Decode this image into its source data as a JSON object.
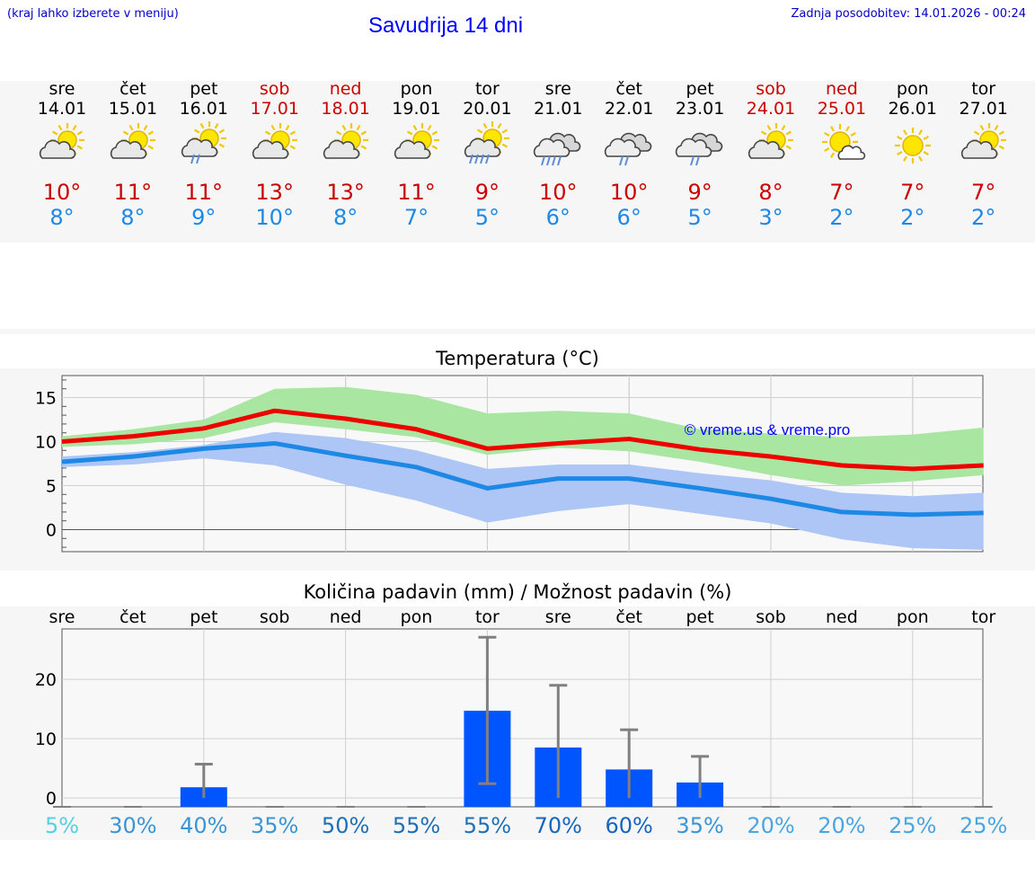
{
  "header": {
    "hint": "(kraj lahko izberete v meniju)",
    "title": "Savudrija 14 dni",
    "updated": "Zadnja posodobitev: 14.01.2026 - 00:24"
  },
  "colors": {
    "weekend": "#cc0000",
    "max_line": "#ee0000",
    "min_line": "#1e88e5",
    "max_band": "#a8e6a1",
    "min_band": "#aec6f5",
    "overlap": "#86c8a6",
    "bar": "#0055ff",
    "title": "#0000ff"
  },
  "days": [
    {
      "name": "sre",
      "date": "14.01",
      "weekend": false,
      "icon": "partly-cloudy-icon",
      "max": "10°",
      "min": "8°"
    },
    {
      "name": "čet",
      "date": "15.01",
      "weekend": false,
      "icon": "partly-cloudy-icon",
      "max": "11°",
      "min": "8°"
    },
    {
      "name": "pet",
      "date": "16.01",
      "weekend": false,
      "icon": "sun-cloud-rain-icon",
      "max": "11°",
      "min": "9°"
    },
    {
      "name": "sob",
      "date": "17.01",
      "weekend": true,
      "icon": "partly-cloudy-icon",
      "max": "13°",
      "min": "10°"
    },
    {
      "name": "ned",
      "date": "18.01",
      "weekend": true,
      "icon": "partly-cloudy-icon",
      "max": "13°",
      "min": "8°"
    },
    {
      "name": "pon",
      "date": "19.01",
      "weekend": false,
      "icon": "partly-cloudy-icon",
      "max": "11°",
      "min": "7°"
    },
    {
      "name": "tor",
      "date": "20.01",
      "weekend": false,
      "icon": "sun-cloud-heavy-rain-icon",
      "max": "9°",
      "min": "5°"
    },
    {
      "name": "sre",
      "date": "21.01",
      "weekend": false,
      "icon": "cloud-heavy-rain-icon",
      "max": "10°",
      "min": "6°"
    },
    {
      "name": "čet",
      "date": "22.01",
      "weekend": false,
      "icon": "cloud-rain-icon",
      "max": "10°",
      "min": "6°"
    },
    {
      "name": "pet",
      "date": "23.01",
      "weekend": false,
      "icon": "cloud-rain-icon",
      "max": "9°",
      "min": "5°"
    },
    {
      "name": "sob",
      "date": "24.01",
      "weekend": true,
      "icon": "partly-cloudy-icon",
      "max": "8°",
      "min": "3°"
    },
    {
      "name": "ned",
      "date": "25.01",
      "weekend": true,
      "icon": "sun-small-cloud-icon",
      "max": "7°",
      "min": "2°"
    },
    {
      "name": "pon",
      "date": "26.01",
      "weekend": false,
      "icon": "sun-icon",
      "max": "7°",
      "min": "2°"
    },
    {
      "name": "tor",
      "date": "27.01",
      "weekend": false,
      "icon": "partly-cloudy-icon",
      "max": "7°",
      "min": "2°"
    }
  ],
  "chart_data": [
    {
      "type": "line",
      "title": "Temperatura (°C)",
      "watermark": "© vreme.us & vreme.pro",
      "ylim": [
        -2.5,
        17.5
      ],
      "yticks": [
        0,
        5,
        10,
        15
      ],
      "x": [
        0,
        1,
        2,
        3,
        4,
        5,
        6,
        7,
        8,
        9,
        10,
        11,
        12,
        13
      ],
      "series": [
        {
          "name": "max",
          "values": [
            10.0,
            10.6,
            11.5,
            13.5,
            12.6,
            11.4,
            9.2,
            9.8,
            10.3,
            9.1,
            8.3,
            7.3,
            6.9,
            7.3
          ]
        },
        {
          "name": "min",
          "values": [
            7.7,
            8.3,
            9.2,
            9.8,
            8.4,
            7.1,
            4.7,
            5.8,
            5.8,
            4.7,
            3.5,
            2.0,
            1.7,
            1.9
          ]
        },
        {
          "name": "max_range_high",
          "values": [
            10.6,
            11.4,
            12.5,
            16.0,
            16.2,
            15.3,
            13.2,
            13.5,
            13.2,
            11.4,
            10.9,
            10.5,
            10.8,
            11.6
          ]
        },
        {
          "name": "max_range_low",
          "values": [
            9.4,
            9.7,
            10.4,
            12.2,
            11.4,
            10.5,
            8.5,
            9.3,
            8.9,
            7.7,
            6.2,
            5.0,
            5.5,
            6.2
          ]
        },
        {
          "name": "min_range_high",
          "values": [
            8.3,
            8.8,
            9.6,
            11.1,
            10.4,
            9.0,
            6.9,
            7.4,
            7.4,
            6.4,
            5.6,
            4.2,
            3.8,
            4.2
          ]
        },
        {
          "name": "min_range_low",
          "values": [
            7.1,
            7.4,
            8.1,
            7.3,
            5.1,
            3.3,
            0.8,
            2.1,
            2.9,
            1.8,
            0.7,
            -1.1,
            -2.1,
            -2.3
          ]
        }
      ]
    },
    {
      "type": "bar",
      "title": "Količina padavin (mm) / Možnost padavin (%)",
      "ylim": [
        -1.5,
        28.5
      ],
      "yticks": [
        0,
        10,
        20
      ],
      "categories": [
        "sre",
        "čet",
        "pet",
        "sob",
        "ned",
        "pon",
        "tor",
        "sre",
        "čet",
        "pet",
        "sob",
        "ned",
        "pon",
        "tor"
      ],
      "values": [
        0,
        0,
        1.8,
        0,
        0,
        0,
        14.7,
        8.5,
        4.8,
        2.6,
        0,
        0,
        0,
        0
      ],
      "error_low": [
        0,
        0,
        0,
        0,
        0,
        0,
        2.4,
        0,
        0,
        0,
        0,
        0,
        0,
        0
      ],
      "error_high": [
        0,
        0,
        5.7,
        0,
        0,
        0,
        27.1,
        19.0,
        11.5,
        7.0,
        0,
        0,
        0,
        0
      ],
      "probability": [
        "5%",
        "30%",
        "40%",
        "35%",
        "50%",
        "55%",
        "55%",
        "70%",
        "60%",
        "35%",
        "20%",
        "20%",
        "25%",
        "25%"
      ],
      "probability_values": [
        5,
        30,
        40,
        35,
        50,
        55,
        55,
        70,
        60,
        35,
        20,
        20,
        25,
        25
      ]
    }
  ]
}
